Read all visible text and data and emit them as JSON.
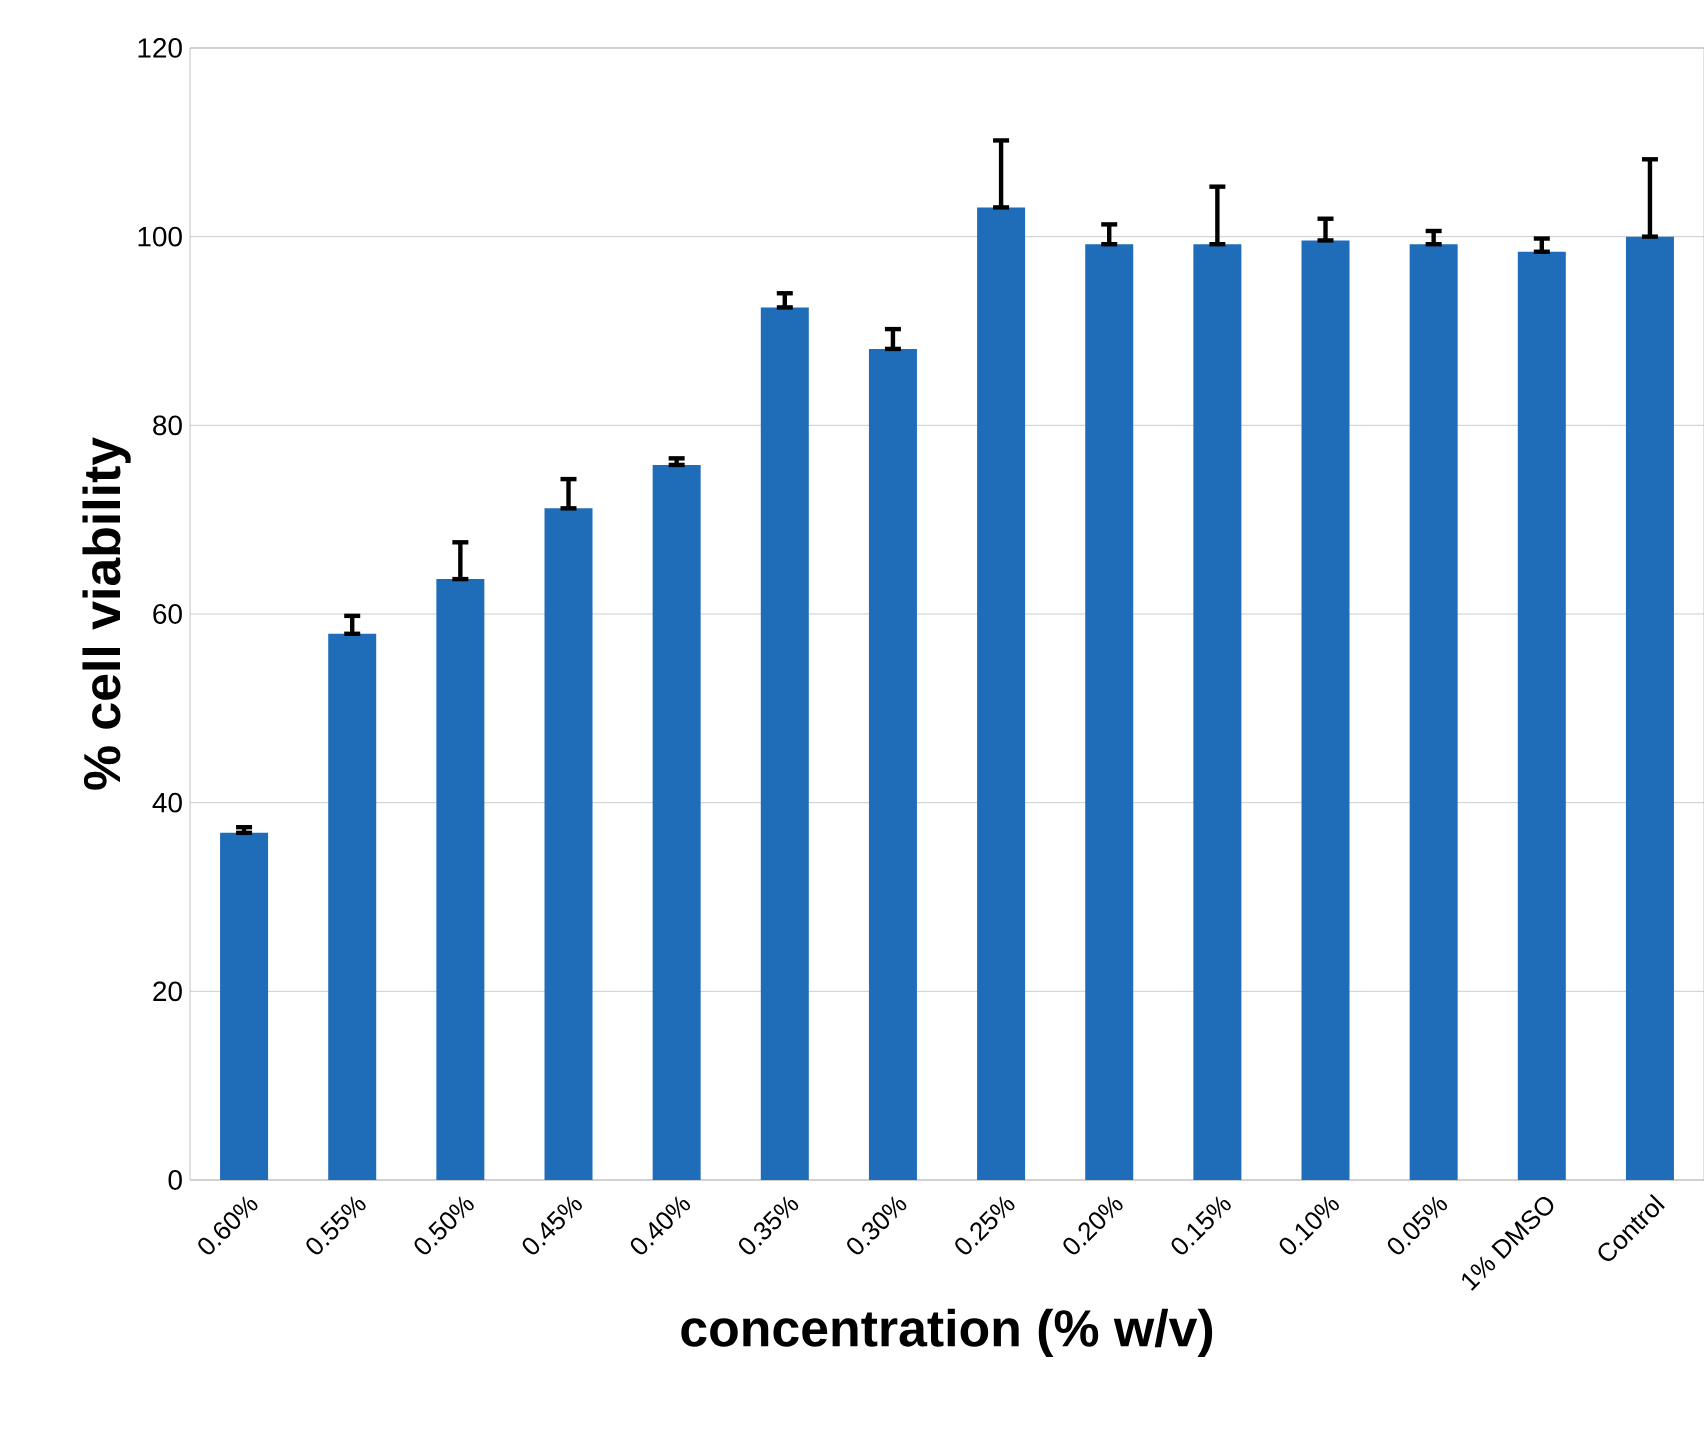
{
  "chart_data": {
    "type": "bar",
    "xlabel": "concentration (% w/v)",
    "ylabel": "% cell viability",
    "categories": [
      "0.60%",
      "0.55%",
      "0.50%",
      "0.45%",
      "0.40%",
      "0.35%",
      "0.30%",
      "0.25%",
      "0.20%",
      "0.15%",
      "0.10%",
      "0.05%",
      "1% DMSO",
      "Control"
    ],
    "values": [
      36.8,
      57.9,
      63.7,
      71.2,
      75.8,
      92.5,
      88.1,
      103.1,
      99.2,
      99.2,
      99.6,
      99.2,
      98.4,
      100
    ],
    "errors": [
      [
        36.8,
        37.4
      ],
      [
        57.9,
        59.8
      ],
      [
        63.7,
        67.6
      ],
      [
        71.2,
        74.3
      ],
      [
        75.8,
        76.5
      ],
      [
        92.5,
        94.0
      ],
      [
        88.1,
        90.2
      ],
      [
        103.1,
        110.2
      ],
      [
        99.2,
        101.3
      ],
      [
        99.2,
        105.3
      ],
      [
        99.6,
        101.9
      ],
      [
        99.2,
        100.6
      ],
      [
        98.4,
        99.8
      ],
      [
        100,
        108.2
      ]
    ],
    "color": "#1f6cb9",
    "ylim": [
      0,
      120
    ],
    "yticks": [
      0,
      20,
      40,
      60,
      80,
      100,
      120
    ],
    "grid": "y"
  }
}
